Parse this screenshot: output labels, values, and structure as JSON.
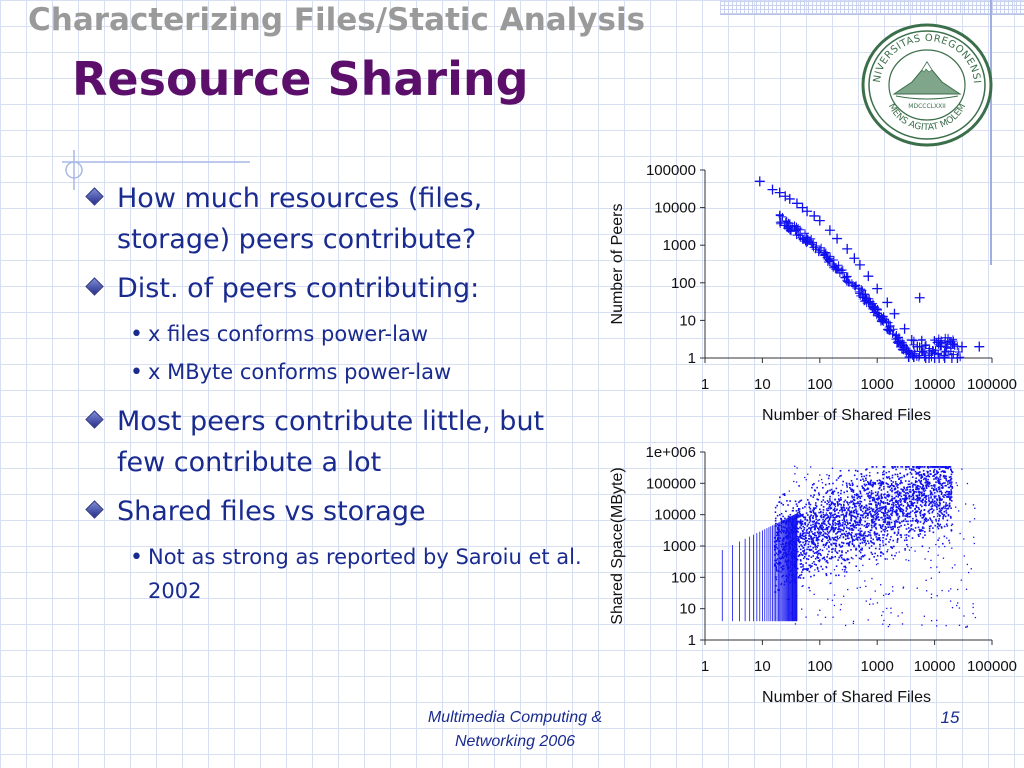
{
  "slide": {
    "subtitle": "Characterizing Files/Static Analysis",
    "title": "Resource Sharing",
    "bullets": [
      {
        "text": "How much resources (files, storage) peers contribute?",
        "sub": []
      },
      {
        "text": "Dist. of peers contributing:",
        "sub": [
          "x files conforms power-law",
          "x MByte conforms power-law"
        ]
      },
      {
        "text": "Most peers contribute little, but few contribute a lot",
        "sub": []
      },
      {
        "text": "Shared files vs storage",
        "sub": [
          "Not as strong as reported by Saroiu et al. 2002"
        ]
      }
    ],
    "footer_line1": "Multimedia Computing &",
    "footer_line2": "Networking 2006",
    "page_number": "15",
    "seal_text_top": "UNIVERSITAS OREGONENSIS",
    "seal_text_bottom": "MENS AGITAT MOLEM",
    "seal_year": "MDCCCLXXII"
  },
  "colors": {
    "title": "#5c0e6b",
    "subtitle": "#9a9a9a",
    "body_text": "#1a2b8f",
    "plot_marker": "#1010ee",
    "seal": "#3b6f4a"
  },
  "chart_data": [
    {
      "type": "scatter",
      "title": "",
      "xlabel": "Number of Shared Files",
      "ylabel": "Number of Peers",
      "x_scale": "log",
      "y_scale": "log",
      "xlim": [
        1,
        100000
      ],
      "ylim": [
        1,
        100000
      ],
      "x_ticks": [
        "1",
        "10",
        "100",
        "1000",
        "10000",
        "100000"
      ],
      "y_ticks": [
        "1",
        "10",
        "100",
        "1000",
        "10000",
        "100000"
      ],
      "marker": "+",
      "series": [
        {
          "x": [
            9,
            15,
            20,
            25,
            30,
            40,
            50,
            60,
            80,
            100,
            150,
            200,
            300,
            400,
            500,
            700,
            1000,
            1500,
            2000,
            3000,
            4000,
            5000,
            6000,
            7000,
            8000,
            10000,
            12000,
            15000,
            20000,
            25000,
            5500,
            30000,
            60000
          ],
          "y": [
            50000,
            30000,
            25000,
            20000,
            17000,
            13000,
            10000,
            8000,
            6000,
            4500,
            2500,
            1500,
            800,
            450,
            300,
            150,
            70,
            30,
            15,
            6,
            3,
            2,
            1.5,
            1,
            1,
            1,
            1,
            1,
            1,
            1,
            40,
            2,
            2
          ]
        }
      ]
    },
    {
      "type": "scatter",
      "title": "",
      "xlabel": "Number of Shared Files",
      "ylabel": "Shared Space(MByte)",
      "x_scale": "log",
      "y_scale": "log",
      "xlim": [
        1,
        100000
      ],
      "ylim": [
        1,
        1000000
      ],
      "x_ticks": [
        "1",
        "10",
        "100",
        "1000",
        "10000",
        "100000"
      ],
      "y_ticks": [
        "1",
        "10",
        "100",
        "1000",
        "10000",
        "100000",
        "1e+006"
      ],
      "marker": "dot",
      "description_points": [
        {
          "x": 10,
          "y": 300
        },
        {
          "x": 100,
          "y": 5000
        },
        {
          "x": 1000,
          "y": 10000
        },
        {
          "x": 10000,
          "y": 40000
        }
      ]
    }
  ]
}
